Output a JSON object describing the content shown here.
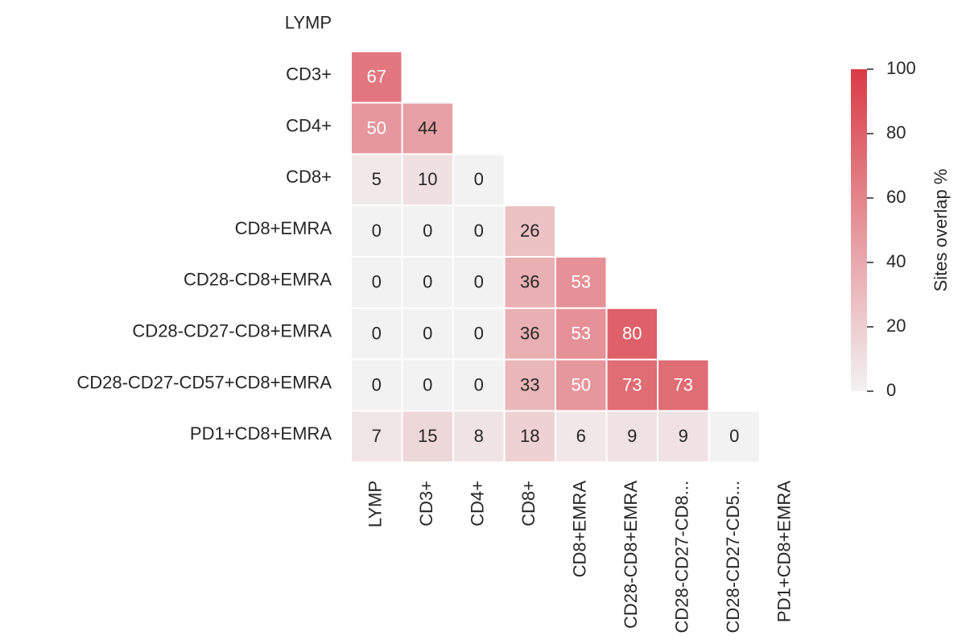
{
  "chart_data": {
    "type": "heatmap",
    "mask": "lower-triangle",
    "row_labels": [
      "LYMP",
      "CD3+",
      "CD4+",
      "CD8+",
      "CD8+EMRA",
      "CD28-CD8+EMRA",
      "CD28-CD27-CD8+EMRA",
      "CD28-CD27-CD57+CD8+EMRA",
      "PD1+CD8+EMRA"
    ],
    "col_labels": [
      "LYMP",
      "CD3+",
      "CD4+",
      "CD8+",
      "CD8+EMRA",
      "CD28-CD8+EMRA",
      "CD28-CD27-CD8...",
      "CD28-CD27-CD5...",
      "PD1+CD8+EMRA"
    ],
    "values": [
      [],
      [
        67
      ],
      [
        50,
        44
      ],
      [
        5,
        10,
        0
      ],
      [
        0,
        0,
        0,
        26
      ],
      [
        0,
        0,
        0,
        36,
        53
      ],
      [
        0,
        0,
        0,
        36,
        53,
        80
      ],
      [
        0,
        0,
        0,
        33,
        50,
        73,
        73
      ],
      [
        7,
        15,
        8,
        18,
        6,
        9,
        9,
        0
      ]
    ],
    "colorbar": {
      "label": "Sites overlap %",
      "vmin": 0,
      "vmax": 100,
      "ticks": [
        0,
        20,
        40,
        60,
        80,
        100
      ],
      "color_low": "#f2f2f2",
      "color_high": "#da3b46"
    },
    "text_color_dark": "#262626",
    "text_color_light": "#ffffff"
  }
}
